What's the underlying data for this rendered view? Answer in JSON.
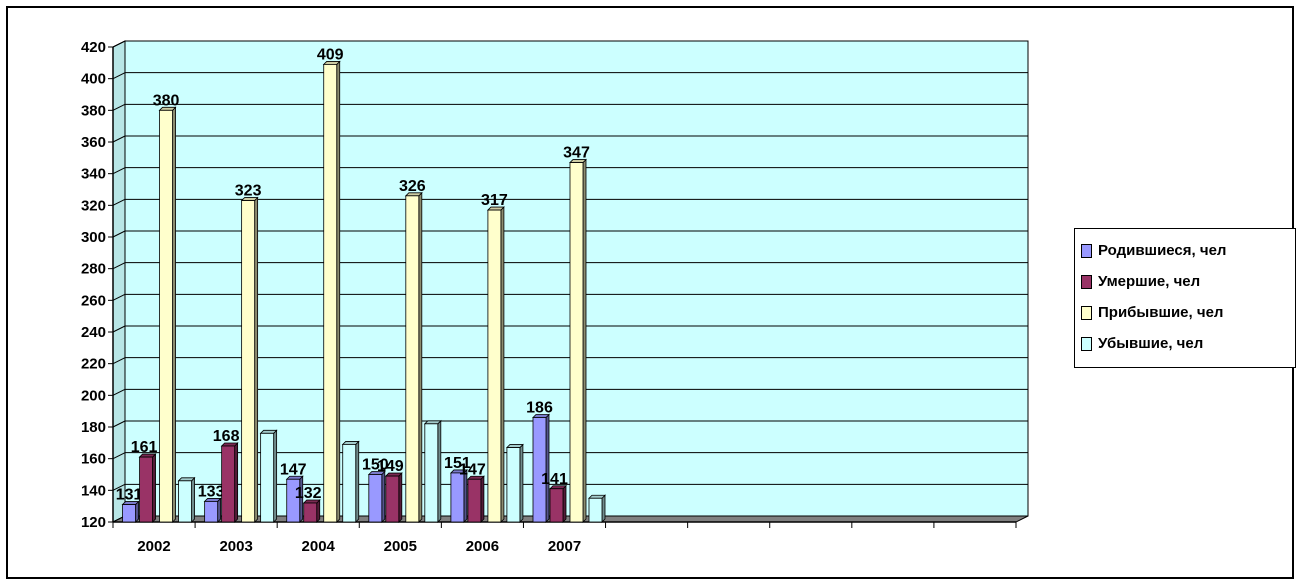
{
  "colors": {
    "plot_background": "#ccffff",
    "floor": "#808080",
    "grid": "#000000"
  },
  "chart_data": {
    "type": "bar",
    "categories": [
      "2002",
      "2003",
      "2004",
      "2005",
      "2006",
      "2007"
    ],
    "series": [
      {
        "name": "Родившиеся, чел",
        "color": "#9999ff",
        "values": [
          131,
          133,
          147,
          150,
          151,
          186
        ],
        "labels": [
          "131",
          "133",
          "147",
          "150",
          "151",
          "186"
        ]
      },
      {
        "name": "Умершие, чел",
        "color": "#993366",
        "values": [
          161,
          168,
          132,
          149,
          147,
          141
        ],
        "labels": [
          "161",
          "168",
          "132",
          "149",
          "147",
          "141"
        ]
      },
      {
        "name": "Прибывшие, чел",
        "color": "#ffffcc",
        "values": [
          380,
          323,
          409,
          326,
          317,
          347
        ],
        "labels": [
          "380",
          "323",
          "409",
          "326",
          "317",
          "347"
        ]
      },
      {
        "name": "Убывшие, чел",
        "color": "#ccffff",
        "values": [
          146,
          176,
          169,
          182,
          167,
          135
        ],
        "labels": [
          "",
          "",
          "",
          "",
          "",
          ""
        ]
      }
    ],
    "yticks": [
      "420",
      "400",
      "380",
      "360",
      "340",
      "320",
      "300",
      "280",
      "260",
      "240",
      "220",
      "200",
      "180",
      "160",
      "140",
      "120"
    ],
    "ylim": [
      120,
      420
    ],
    "xlabel": "",
    "ylabel": "",
    "grid": true,
    "legend_position": "right"
  }
}
